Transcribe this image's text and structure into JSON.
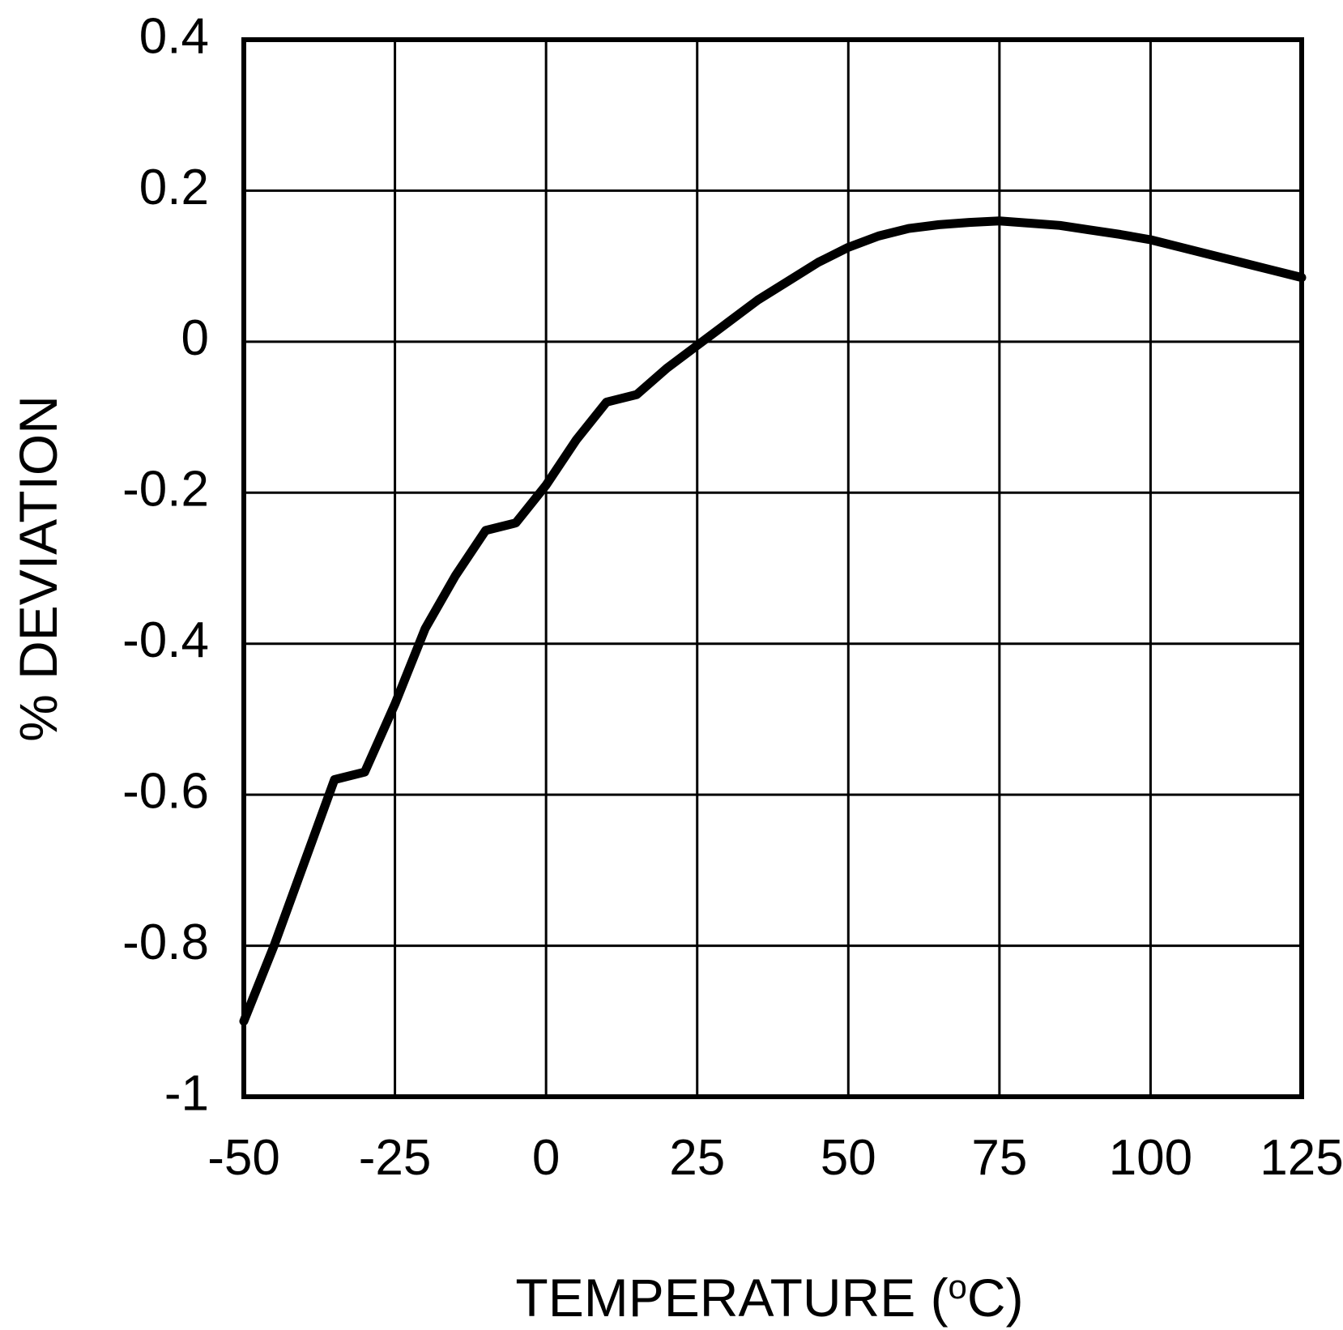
{
  "chart_data": {
    "type": "line",
    "title": "",
    "xlabel": "TEMPERATURE (",
    "xlabel_super": "o",
    "xlabel_suffix": "C)",
    "ylabel": "% DEVIATION",
    "xlim": [
      -50,
      125
    ],
    "ylim": [
      -1,
      0.4
    ],
    "x_ticks": [
      -50,
      -25,
      0,
      25,
      50,
      75,
      100,
      125
    ],
    "y_ticks": [
      0.4,
      0.2,
      0,
      -0.2,
      -0.4,
      -0.6,
      -0.8,
      -1
    ],
    "x_tick_labels": [
      "-50",
      "-25",
      "0",
      "25",
      "50",
      "75",
      "100",
      "125"
    ],
    "y_tick_labels": [
      "0.4",
      "0.2",
      "0",
      "-0.2",
      "-0.4",
      "-0.6",
      "-0.8",
      "-1"
    ],
    "grid": true,
    "series": [
      {
        "name": "% Deviation",
        "x": [
          -50,
          -45,
          -40,
          -35,
          -30,
          -25,
          -20,
          -15,
          -10,
          -5,
          0,
          5,
          10,
          15,
          20,
          25,
          30,
          35,
          40,
          45,
          50,
          55,
          60,
          65,
          70,
          75,
          80,
          85,
          90,
          95,
          100,
          105,
          110,
          115,
          120,
          125
        ],
        "y": [
          -0.9,
          -0.8,
          -0.69,
          -0.58,
          -0.57,
          -0.48,
          -0.38,
          -0.31,
          -0.25,
          -0.24,
          -0.19,
          -0.13,
          -0.08,
          -0.07,
          -0.035,
          -0.005,
          0.025,
          0.055,
          0.08,
          0.105,
          0.125,
          0.14,
          0.15,
          0.155,
          0.158,
          0.16,
          0.157,
          0.154,
          0.148,
          0.142,
          0.135,
          0.125,
          0.115,
          0.105,
          0.095,
          0.085
        ]
      }
    ]
  }
}
